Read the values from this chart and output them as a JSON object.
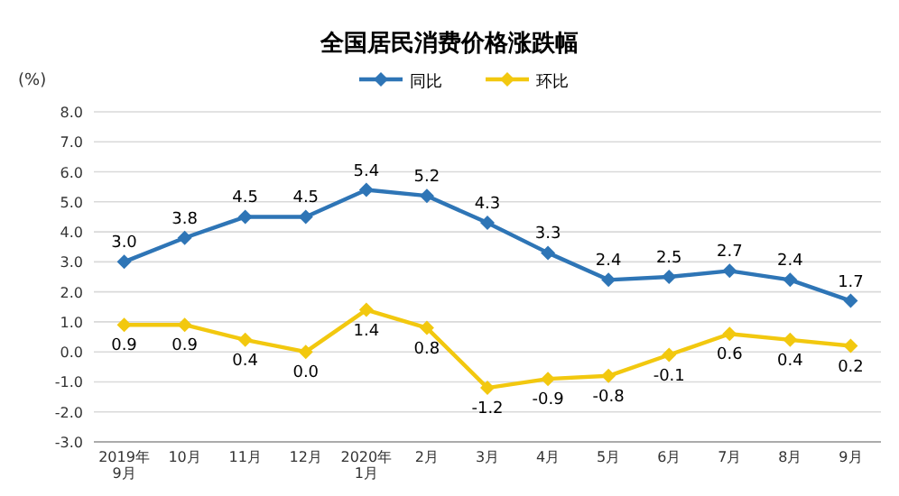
{
  "chart_data": {
    "type": "line",
    "title": "全国居民消费价格涨跌幅",
    "ylabel": "(%)",
    "categories": [
      "2019年\n9月",
      "10月",
      "11月",
      "12月",
      "2020年\n1月",
      "2月",
      "3月",
      "4月",
      "5月",
      "6月",
      "7月",
      "8月",
      "9月"
    ],
    "series": [
      {
        "name": "同比",
        "color": "#2e75b6",
        "values": [
          3.0,
          3.8,
          4.5,
          4.5,
          5.4,
          5.2,
          4.3,
          3.3,
          2.4,
          2.5,
          2.7,
          2.4,
          1.7
        ],
        "value_labels": [
          "3.0",
          "3.8",
          "4.5",
          "4.5",
          "5.4",
          "5.2",
          "4.3",
          "3.3",
          "2.4",
          "2.5",
          "2.7",
          "2.4",
          "1.7"
        ]
      },
      {
        "name": "环比",
        "color": "#f2c80f",
        "values": [
          0.9,
          0.9,
          0.4,
          0.0,
          1.4,
          0.8,
          -1.2,
          -0.9,
          -0.8,
          -0.1,
          0.6,
          0.4,
          0.2
        ],
        "value_labels": [
          "0.9",
          "0.9",
          "0.4",
          "0.0",
          "1.4",
          "0.8",
          "-1.2",
          "-0.9",
          "-0.8",
          "-0.1",
          "0.6",
          "0.4",
          "0.2"
        ]
      }
    ],
    "ylim": [
      -3.0,
      8.0
    ],
    "yticks": [
      {
        "value": -3,
        "label": "-3.0"
      },
      {
        "value": -2,
        "label": "-2.0"
      },
      {
        "value": -1,
        "label": "-1.0"
      },
      {
        "value": 0,
        "label": "0.0"
      },
      {
        "value": 1,
        "label": "1.0"
      },
      {
        "value": 2,
        "label": "2.0"
      },
      {
        "value": 3,
        "label": "3.0"
      },
      {
        "value": 4,
        "label": "4.0"
      },
      {
        "value": 5,
        "label": "5.0"
      },
      {
        "value": 6,
        "label": "6.0"
      },
      {
        "value": 7,
        "label": "7.0"
      },
      {
        "value": 8,
        "label": "8.0"
      }
    ],
    "grid": "y",
    "legend": "top",
    "marker": "diamond",
    "line_style": "solid"
  }
}
